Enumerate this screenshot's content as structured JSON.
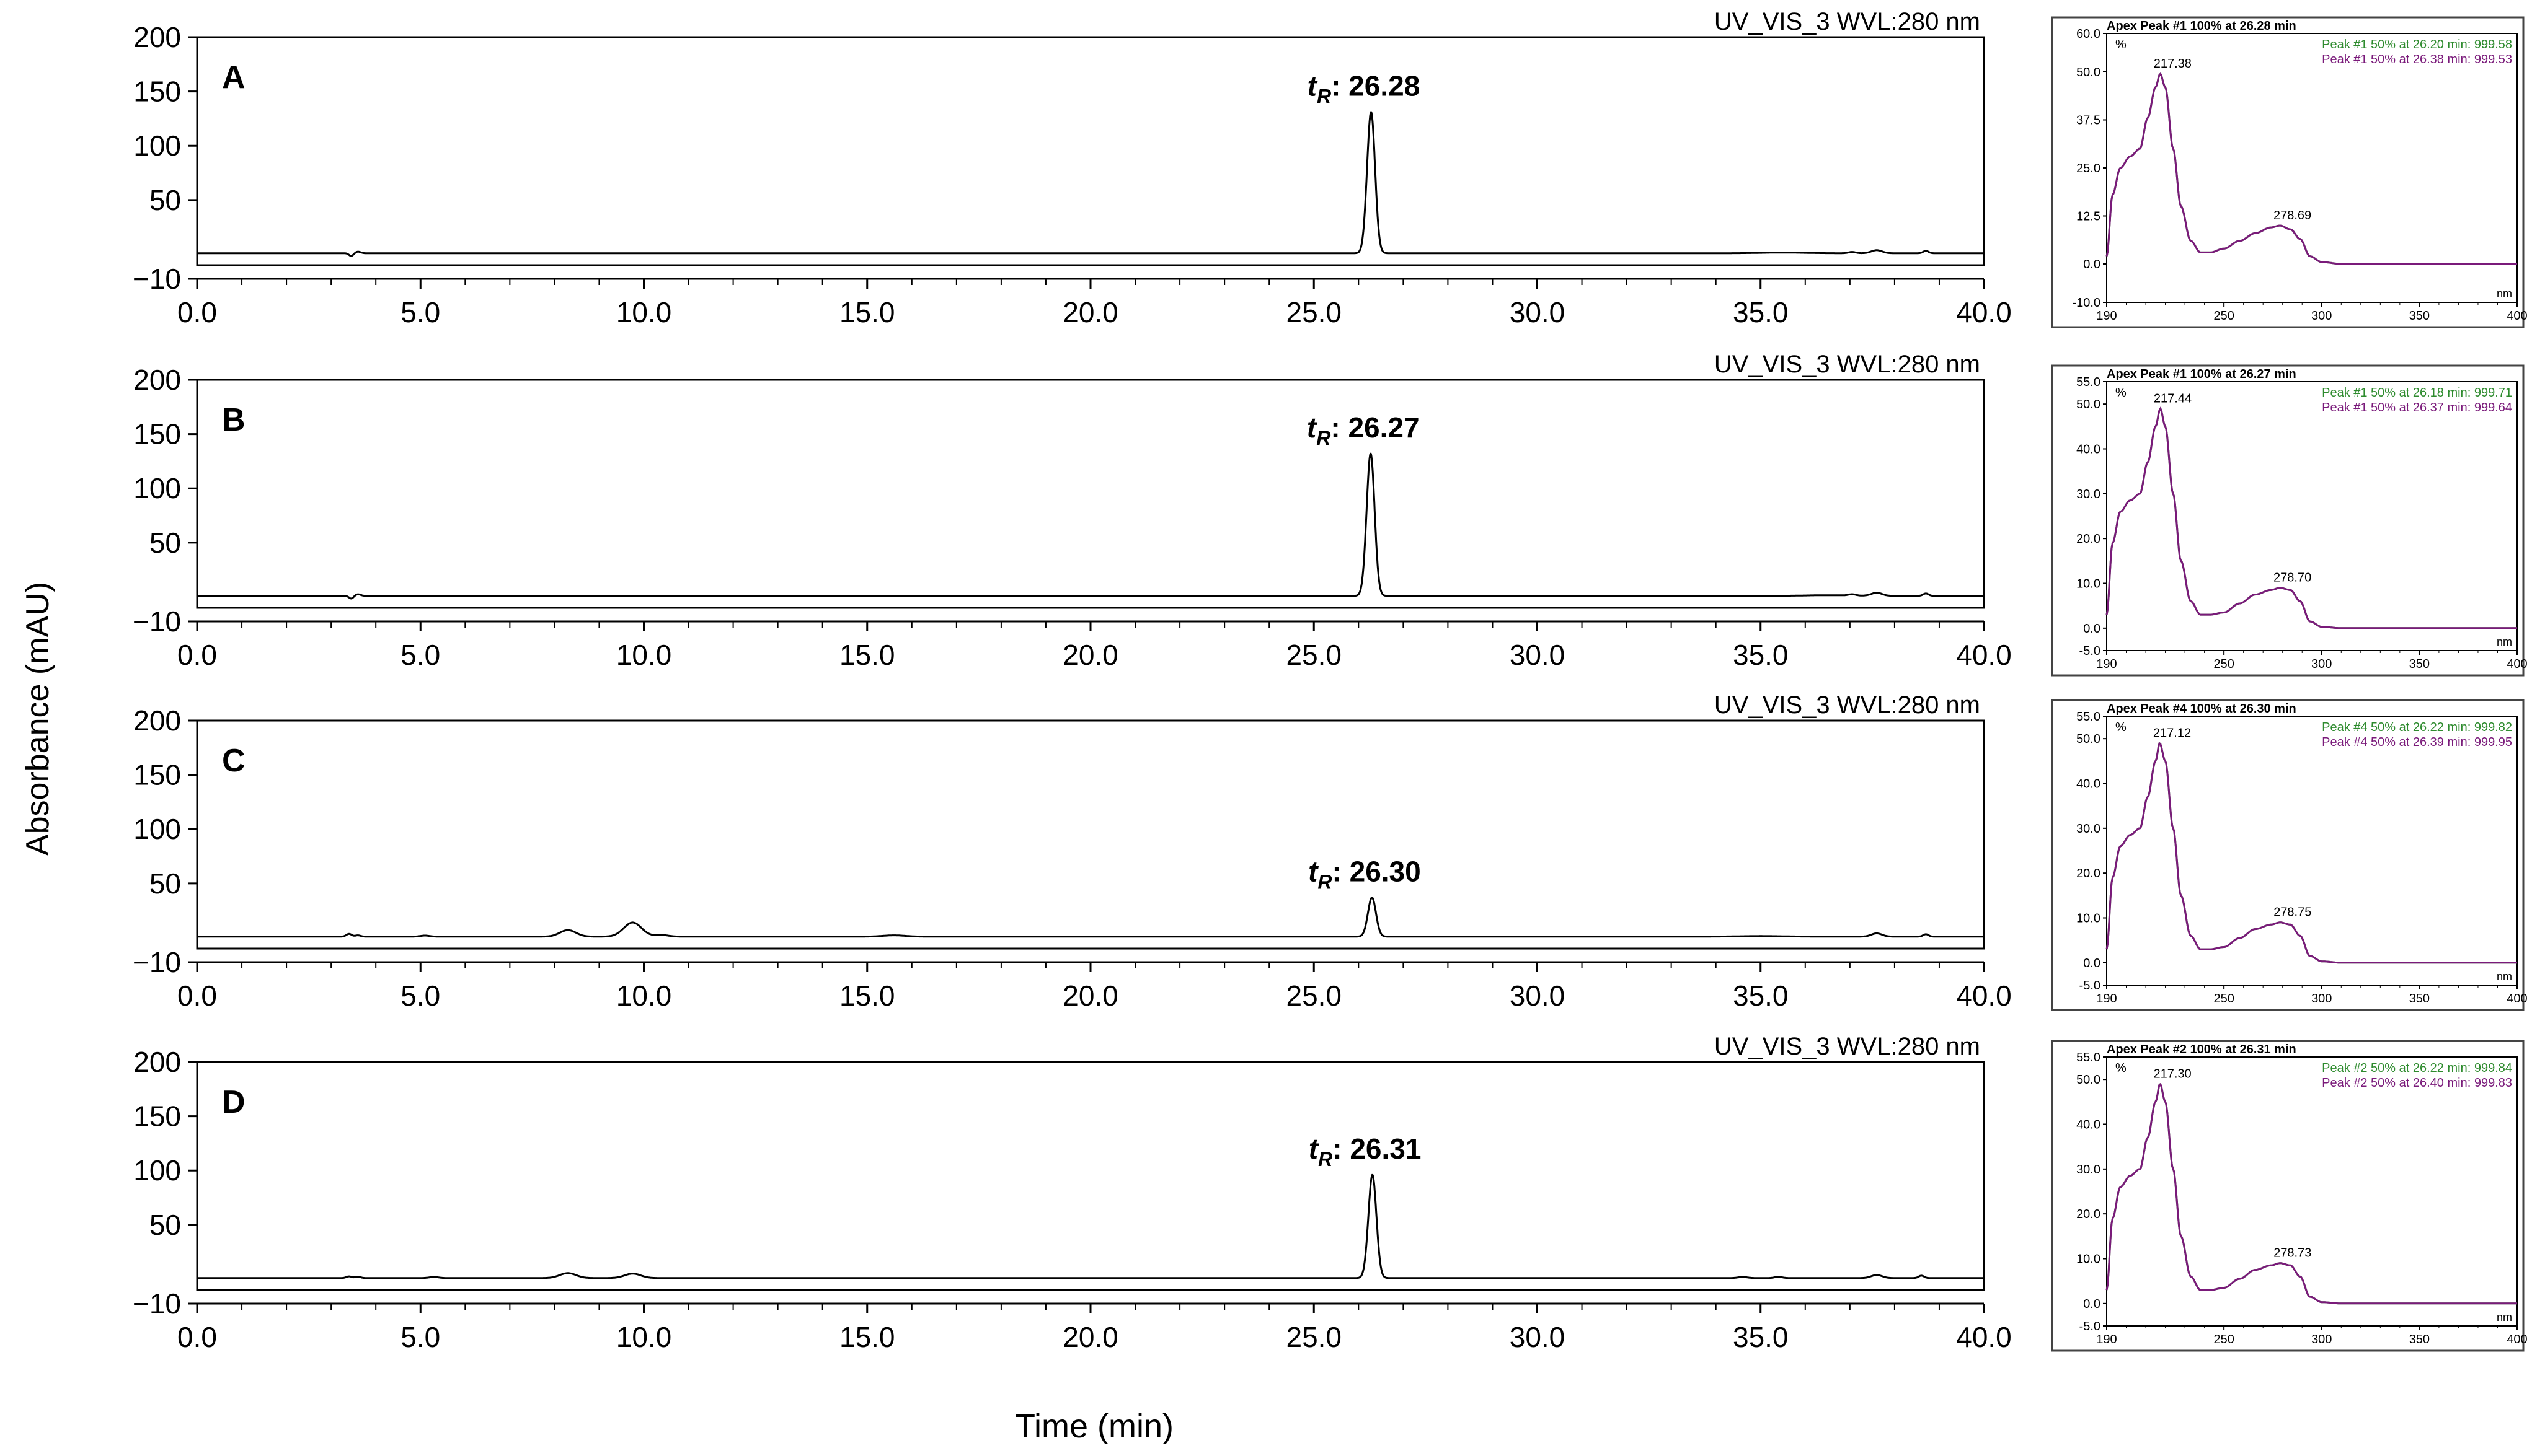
{
  "figure": {
    "ylabel": "Absorbance (mAU)",
    "xlabel": "Time (min)"
  },
  "chart_data": [
    {
      "type": "line",
      "panel": "A",
      "title": "UV_VIS_3 WVL:280 nm",
      "xlabel": "Time (min)",
      "ylabel": "Absorbance (mAU)",
      "xlim": [
        0,
        40
      ],
      "ylim": [
        -10,
        200
      ],
      "xticks": [
        "0.0",
        "5.0",
        "10.0",
        "15.0",
        "20.0",
        "25.0",
        "30.0",
        "35.0",
        "40.0"
      ],
      "yticks": [
        -10,
        50,
        100,
        150,
        200
      ],
      "annotation": {
        "label": "t",
        "sub": "R",
        "text": ": 26.28",
        "x": 26.28,
        "y": 130
      },
      "baseline": 1,
      "events": [
        {
          "x": 3.45,
          "h": -2.5,
          "w": 0.05
        },
        {
          "x": 3.6,
          "h": 1.5,
          "w": 0.06
        },
        {
          "x": 26.28,
          "h": 130,
          "w": 0.09
        },
        {
          "x": 35.5,
          "h": 0.6,
          "w": 0.5
        },
        {
          "x": 37.05,
          "h": 1.2,
          "w": 0.08
        },
        {
          "x": 37.6,
          "h": 2.8,
          "w": 0.12
        },
        {
          "x": 38.7,
          "h": 2.2,
          "w": 0.06
        }
      ],
      "grid": false
    },
    {
      "type": "line",
      "panel": "B",
      "title": "UV_VIS_3 WVL:280 nm",
      "xlabel": "Time (min)",
      "ylabel": "Absorbance (mAU)",
      "xlim": [
        0,
        40
      ],
      "ylim": [
        -10,
        200
      ],
      "xticks": [
        "0.0",
        "5.0",
        "10.0",
        "15.0",
        "20.0",
        "25.0",
        "30.0",
        "35.0",
        "40.0"
      ],
      "yticks": [
        -10,
        50,
        100,
        150,
        200
      ],
      "annotation": {
        "label": "t",
        "sub": "R",
        "text": ": 26.27",
        "x": 26.27,
        "y": 131
      },
      "baseline": 1,
      "events": [
        {
          "x": 3.45,
          "h": -2.5,
          "w": 0.05
        },
        {
          "x": 3.6,
          "h": 1.5,
          "w": 0.06
        },
        {
          "x": 26.27,
          "h": 131,
          "w": 0.09
        },
        {
          "x": 36.5,
          "h": 0.6,
          "w": 0.5
        },
        {
          "x": 37.05,
          "h": 1.2,
          "w": 0.08
        },
        {
          "x": 37.6,
          "h": 2.8,
          "w": 0.12
        },
        {
          "x": 38.7,
          "h": 2.2,
          "w": 0.06
        }
      ],
      "grid": false
    },
    {
      "type": "line",
      "panel": "C",
      "title": "UV_VIS_3 WVL:280 nm",
      "xlabel": "Time (min)",
      "ylabel": "Absorbance (mAU)",
      "xlim": [
        0,
        40
      ],
      "ylim": [
        -10,
        200
      ],
      "xticks": [
        "0.0",
        "5.0",
        "10.0",
        "15.0",
        "20.0",
        "25.0",
        "30.0",
        "35.0",
        "40.0"
      ],
      "yticks": [
        -10,
        50,
        100,
        150,
        200
      ],
      "annotation": {
        "label": "t",
        "sub": "R",
        "text": ": 26.30",
        "x": 26.3,
        "y": 36
      },
      "baseline": 1,
      "events": [
        {
          "x": 3.4,
          "h": 2.5,
          "w": 0.06
        },
        {
          "x": 3.6,
          "h": 1.2,
          "w": 0.06
        },
        {
          "x": 5.1,
          "h": 1.0,
          "w": 0.1
        },
        {
          "x": 8.3,
          "h": 6.0,
          "w": 0.18
        },
        {
          "x": 9.75,
          "h": 13.0,
          "w": 0.2
        },
        {
          "x": 10.4,
          "h": 1.5,
          "w": 0.15
        },
        {
          "x": 15.6,
          "h": 1.2,
          "w": 0.25
        },
        {
          "x": 26.3,
          "h": 36,
          "w": 0.09
        },
        {
          "x": 35.0,
          "h": 0.5,
          "w": 0.5
        },
        {
          "x": 37.6,
          "h": 3.0,
          "w": 0.12
        },
        {
          "x": 38.7,
          "h": 2.2,
          "w": 0.06
        }
      ],
      "grid": false
    },
    {
      "type": "line",
      "panel": "D",
      "title": "UV_VIS_3 WVL:280 nm",
      "xlabel": "Time (min)",
      "ylabel": "Absorbance (mAU)",
      "xlim": [
        0,
        40
      ],
      "ylim": [
        -10,
        200
      ],
      "xticks": [
        "0.0",
        "5.0",
        "10.0",
        "15.0",
        "20.0",
        "25.0",
        "30.0",
        "35.0",
        "40.0"
      ],
      "yticks": [
        -10,
        50,
        100,
        150,
        200
      ],
      "annotation": {
        "label": "t",
        "sub": "R",
        "text": ": 26.31",
        "x": 26.31,
        "y": 95
      },
      "baseline": 1,
      "events": [
        {
          "x": 3.4,
          "h": 1.5,
          "w": 0.06
        },
        {
          "x": 3.6,
          "h": 1.2,
          "w": 0.06
        },
        {
          "x": 5.3,
          "h": 1.0,
          "w": 0.1
        },
        {
          "x": 8.3,
          "h": 4.5,
          "w": 0.18
        },
        {
          "x": 9.75,
          "h": 4.0,
          "w": 0.18
        },
        {
          "x": 26.31,
          "h": 95,
          "w": 0.09
        },
        {
          "x": 34.6,
          "h": 1.0,
          "w": 0.1
        },
        {
          "x": 35.4,
          "h": 1.2,
          "w": 0.08
        },
        {
          "x": 37.6,
          "h": 2.8,
          "w": 0.12
        },
        {
          "x": 38.6,
          "h": 2.2,
          "w": 0.06
        }
      ],
      "grid": false
    },
    {
      "type": "line",
      "panel": "A-spectrum",
      "title": "Apex Peak #1 100% at 26.28 min",
      "yunit": "%",
      "xunit": "nm",
      "xlim": [
        190,
        400
      ],
      "ylim": [
        -10,
        60
      ],
      "xticks": [
        "190",
        "250",
        "300",
        "350",
        "400"
      ],
      "yticks": [
        "60.0",
        "50.0",
        "37.5",
        "25.0",
        "12.5",
        "0.0",
        "-10.0"
      ],
      "yticks_values": [
        60,
        50,
        37.5,
        25,
        12.5,
        0,
        -10
      ],
      "peaks": [
        {
          "x": 217.38,
          "label": "217.38"
        },
        {
          "x": 278.69,
          "label": "278.69"
        }
      ],
      "legend": [
        {
          "text": "Peak #1 50% at 26.20 min: 999.58",
          "color": "#2e8b2e"
        },
        {
          "text": "Peak #1 50% at 26.38 min: 999.53",
          "color": "#7a1a7a"
        }
      ],
      "curve": [
        [
          190,
          2
        ],
        [
          193,
          18
        ],
        [
          197,
          25
        ],
        [
          202,
          28
        ],
        [
          207,
          30
        ],
        [
          211,
          38
        ],
        [
          215,
          46
        ],
        [
          217.38,
          49.5
        ],
        [
          220,
          46
        ],
        [
          224,
          30
        ],
        [
          228,
          15
        ],
        [
          233,
          6
        ],
        [
          238,
          3
        ],
        [
          243,
          3
        ],
        [
          250,
          4
        ],
        [
          258,
          6
        ],
        [
          266,
          8
        ],
        [
          274,
          9.5
        ],
        [
          278.69,
          10
        ],
        [
          284,
          9
        ],
        [
          289,
          6.5
        ],
        [
          294,
          2
        ],
        [
          300,
          0.5
        ],
        [
          310,
          0
        ],
        [
          400,
          0
        ]
      ]
    },
    {
      "type": "line",
      "panel": "B-spectrum",
      "title": "Apex Peak #1 100% at 26.27 min",
      "yunit": "%",
      "xunit": "nm",
      "xlim": [
        190,
        400
      ],
      "ylim": [
        -5,
        55
      ],
      "xticks": [
        "190",
        "250",
        "300",
        "350",
        "400"
      ],
      "yticks": [
        "55.0",
        "50.0",
        "40.0",
        "30.0",
        "20.0",
        "10.0",
        "0.0",
        "-5.0"
      ],
      "yticks_values": [
        55,
        50,
        40,
        30,
        20,
        10,
        0,
        -5
      ],
      "peaks": [
        {
          "x": 217.44,
          "label": "217.44"
        },
        {
          "x": 278.7,
          "label": "278.70"
        }
      ],
      "legend": [
        {
          "text": "Peak #1 50% at 26.18 min: 999.71",
          "color": "#2e8b2e"
        },
        {
          "text": "Peak #1 50% at 26.37 min: 999.64",
          "color": "#7a1a7a"
        }
      ],
      "curve": [
        [
          190,
          3
        ],
        [
          193,
          19
        ],
        [
          197,
          26
        ],
        [
          202,
          28.5
        ],
        [
          207,
          30
        ],
        [
          211,
          37
        ],
        [
          215,
          45
        ],
        [
          217.44,
          49
        ],
        [
          220,
          45
        ],
        [
          224,
          30
        ],
        [
          228,
          15
        ],
        [
          233,
          6
        ],
        [
          238,
          3
        ],
        [
          243,
          3
        ],
        [
          250,
          3.5
        ],
        [
          258,
          5.5
        ],
        [
          266,
          7.5
        ],
        [
          274,
          8.5
        ],
        [
          278.7,
          9
        ],
        [
          284,
          8.5
        ],
        [
          289,
          6
        ],
        [
          294,
          1.5
        ],
        [
          300,
          0.3
        ],
        [
          310,
          0
        ],
        [
          400,
          0
        ]
      ]
    },
    {
      "type": "line",
      "panel": "C-spectrum",
      "title": "Apex Peak #4 100% at 26.30 min",
      "yunit": "%",
      "xunit": "nm",
      "xlim": [
        190,
        400
      ],
      "ylim": [
        -5,
        55
      ],
      "xticks": [
        "190",
        "250",
        "300",
        "350",
        "400"
      ],
      "yticks": [
        "55.0",
        "50.0",
        "40.0",
        "30.0",
        "20.0",
        "10.0",
        "0.0",
        "-5.0"
      ],
      "yticks_values": [
        55,
        50,
        40,
        30,
        20,
        10,
        0,
        -5
      ],
      "peaks": [
        {
          "x": 217.12,
          "label": "217.12"
        },
        {
          "x": 278.75,
          "label": "278.75"
        }
      ],
      "legend": [
        {
          "text": "Peak #4 50% at 26.22 min: 999.82",
          "color": "#2e8b2e"
        },
        {
          "text": "Peak #4 50% at 26.39 min: 999.95",
          "color": "#7a1a7a"
        }
      ],
      "curve": [
        [
          190,
          3
        ],
        [
          193,
          19
        ],
        [
          197,
          26
        ],
        [
          202,
          28.5
        ],
        [
          207,
          30
        ],
        [
          211,
          37
        ],
        [
          215,
          45
        ],
        [
          217.12,
          49
        ],
        [
          220,
          45
        ],
        [
          224,
          30
        ],
        [
          228,
          15
        ],
        [
          233,
          6
        ],
        [
          238,
          3
        ],
        [
          243,
          3
        ],
        [
          250,
          3.5
        ],
        [
          258,
          5.5
        ],
        [
          266,
          7.5
        ],
        [
          274,
          8.5
        ],
        [
          278.75,
          9
        ],
        [
          284,
          8.5
        ],
        [
          289,
          6
        ],
        [
          294,
          1.5
        ],
        [
          300,
          0.3
        ],
        [
          310,
          0
        ],
        [
          400,
          0
        ]
      ]
    },
    {
      "type": "line",
      "panel": "D-spectrum",
      "title": "Apex Peak #2 100% at 26.31 min",
      "yunit": "%",
      "xunit": "nm",
      "xlim": [
        190,
        400
      ],
      "ylim": [
        -5,
        55
      ],
      "xticks": [
        "190",
        "250",
        "300",
        "350",
        "400"
      ],
      "yticks": [
        "55.0",
        "50.0",
        "40.0",
        "30.0",
        "20.0",
        "10.0",
        "0.0",
        "-5.0"
      ],
      "yticks_values": [
        55,
        50,
        40,
        30,
        20,
        10,
        0,
        -5
      ],
      "peaks": [
        {
          "x": 217.3,
          "label": "217.30"
        },
        {
          "x": 278.73,
          "label": "278.73"
        }
      ],
      "legend": [
        {
          "text": "Peak #2 50% at 26.22 min: 999.84",
          "color": "#2e8b2e"
        },
        {
          "text": "Peak #2 50% at 26.40 min: 999.83",
          "color": "#7a1a7a"
        }
      ],
      "curve": [
        [
          190,
          3
        ],
        [
          193,
          19
        ],
        [
          197,
          26
        ],
        [
          202,
          28.5
        ],
        [
          207,
          30
        ],
        [
          211,
          37
        ],
        [
          215,
          45
        ],
        [
          217.3,
          49
        ],
        [
          220,
          45
        ],
        [
          224,
          30
        ],
        [
          228,
          15
        ],
        [
          233,
          6
        ],
        [
          238,
          3
        ],
        [
          243,
          3
        ],
        [
          250,
          3.5
        ],
        [
          258,
          5.5
        ],
        [
          266,
          7.5
        ],
        [
          274,
          8.5
        ],
        [
          278.73,
          9
        ],
        [
          284,
          8.5
        ],
        [
          289,
          6
        ],
        [
          294,
          1.5
        ],
        [
          300,
          0.3
        ],
        [
          310,
          0
        ],
        [
          400,
          0
        ]
      ]
    }
  ]
}
